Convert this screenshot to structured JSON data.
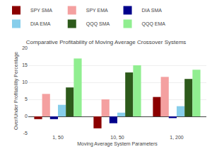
{
  "chart_data": {
    "type": "bar",
    "title": "Comparative Profitability of Moving Average Crossover Systems",
    "xlabel": "Moving Average System Parameters",
    "ylabel": "Over/Under Profitability Percentage",
    "categories": [
      "1, 50",
      "10, 50",
      "1, 200"
    ],
    "series": [
      {
        "name": "SPY SMA",
        "color": "#8B0000",
        "values": [
          -0.8,
          -3.5,
          5.7
        ]
      },
      {
        "name": "SPY EMA",
        "color": "#F4A0A0",
        "values": [
          6.6,
          5.0,
          11.6
        ]
      },
      {
        "name": "DIA SMA",
        "color": "#00008B",
        "values": [
          -0.8,
          -2.0,
          -0.5
        ]
      },
      {
        "name": "DIA EMA",
        "color": "#87CEEB",
        "values": [
          3.4,
          1.1,
          3.0
        ]
      },
      {
        "name": "QQQ SMA",
        "color": "#2D5A1B",
        "values": [
          8.5,
          12.9,
          11.0
        ]
      },
      {
        "name": "QQQ EMA",
        "color": "#90EE90",
        "values": [
          17.0,
          15.0,
          13.7
        ]
      }
    ],
    "ylim": [
      -5,
      20
    ],
    "yticks": [
      -5,
      0,
      5,
      10,
      15,
      20
    ],
    "grid": true,
    "legend": "upper left"
  }
}
